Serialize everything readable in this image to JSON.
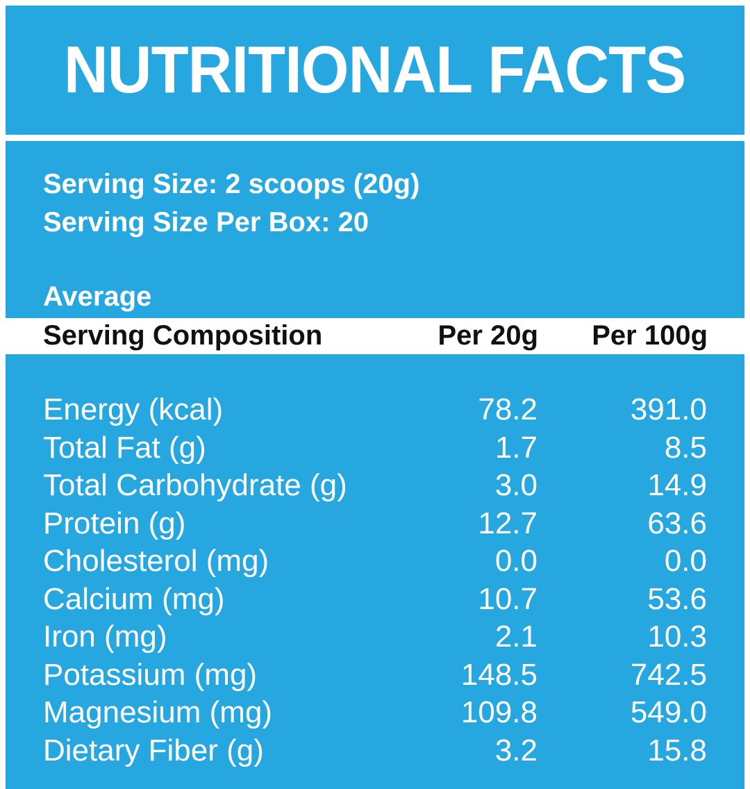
{
  "title": "NUTRITIONAL FACTS",
  "serving": {
    "size": "Serving Size: 2 scoops (20g)",
    "per_box": "Serving Size Per Box: 20"
  },
  "average_label": "Average",
  "header": {
    "composition": "Serving Composition",
    "per20": "Per 20g",
    "per100": "Per 100g"
  },
  "rows": [
    {
      "name": "Energy (kcal)",
      "per20": "78.2",
      "per100": "391.0"
    },
    {
      "name": "Total Fat (g)",
      "per20": "1.7",
      "per100": "8.5"
    },
    {
      "name": "Total Carbohydrate (g)",
      "per20": "3.0",
      "per100": "14.9"
    },
    {
      "name": "Protein (g)",
      "per20": "12.7",
      "per100": "63.6"
    },
    {
      "name": "Cholesterol (mg)",
      "per20": "0.0",
      "per100": "0.0"
    },
    {
      "name": "Calcium (mg)",
      "per20": "10.7",
      "per100": "53.6"
    },
    {
      "name": "Iron (mg)",
      "per20": "2.1",
      "per100": "10.3"
    },
    {
      "name": "Potassium (mg)",
      "per20": "148.5",
      "per100": "742.5"
    },
    {
      "name": "Magnesium (mg)",
      "per20": "109.8",
      "per100": "549.0"
    },
    {
      "name": "Dietary Fiber (g)",
      "per20": "3.2",
      "per100": "15.8"
    }
  ],
  "colors": {
    "panel_blue": "#27a7df",
    "text_white": "#ffffff",
    "header_text": "#111111"
  }
}
